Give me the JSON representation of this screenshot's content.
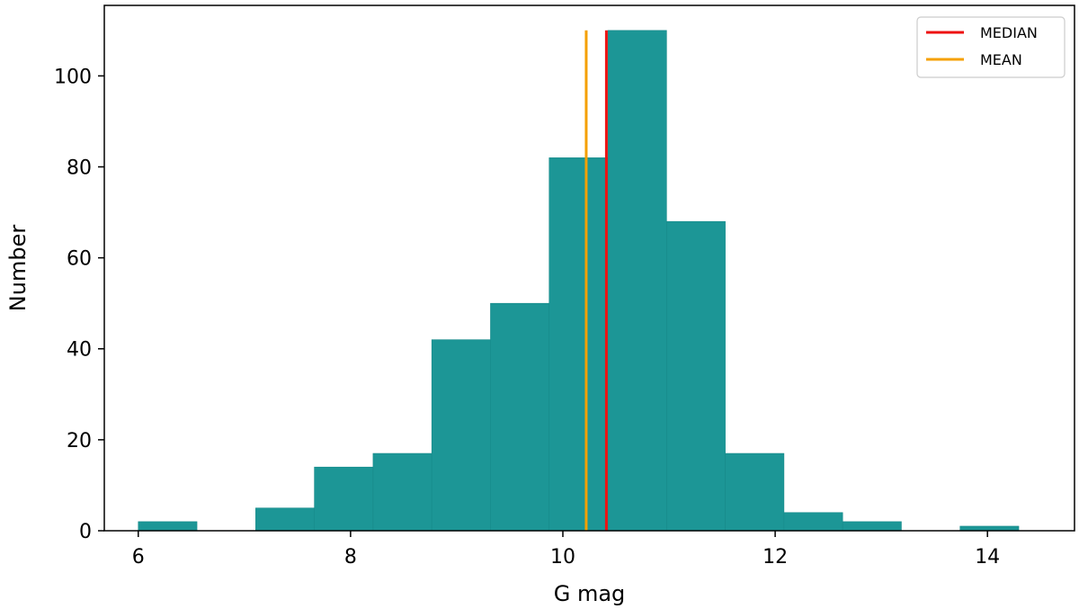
{
  "chart_data": {
    "type": "bar",
    "subtype": "histogram",
    "xlabel": "G mag",
    "ylabel": "Number",
    "xlim": [
      5.68,
      14.82
    ],
    "ylim": [
      0,
      115.5
    ],
    "xticks": [
      6,
      8,
      10,
      12,
      14
    ],
    "yticks": [
      0,
      20,
      40,
      60,
      80,
      100
    ],
    "bin_width": 0.553,
    "bins": [
      {
        "start": 6.0,
        "count": 2
      },
      {
        "start": 6.553,
        "count": 0
      },
      {
        "start": 7.106,
        "count": 5
      },
      {
        "start": 7.659,
        "count": 14
      },
      {
        "start": 8.212,
        "count": 17
      },
      {
        "start": 8.765,
        "count": 42
      },
      {
        "start": 9.318,
        "count": 50
      },
      {
        "start": 9.871,
        "count": 82
      },
      {
        "start": 10.424,
        "count": 110
      },
      {
        "start": 10.977,
        "count": 68
      },
      {
        "start": 11.53,
        "count": 17
      },
      {
        "start": 12.083,
        "count": 4
      },
      {
        "start": 12.636,
        "count": 2
      },
      {
        "start": 13.189,
        "count": 0
      },
      {
        "start": 13.742,
        "count": 1
      }
    ],
    "bar_color": "#1c9696",
    "vlines": [
      {
        "name": "MEDIAN",
        "x": 10.41,
        "ymax": 110,
        "color": "#ee1111"
      },
      {
        "name": "MEAN",
        "x": 10.22,
        "ymax": 110,
        "color": "#f5a000"
      }
    ],
    "legend": {
      "position": "top-right",
      "entries": [
        "MEDIAN",
        "MEAN"
      ]
    },
    "grid": false
  }
}
